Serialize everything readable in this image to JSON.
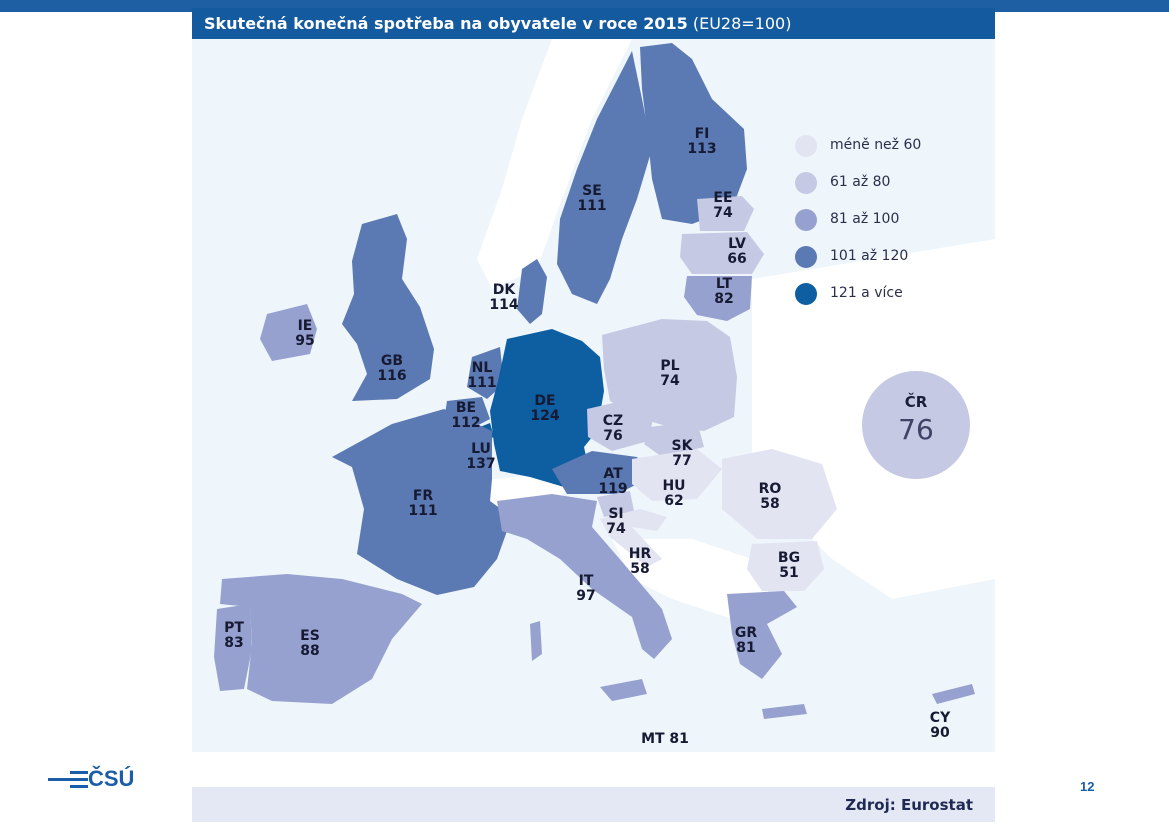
{
  "title": {
    "bold": "Skutečná konečná spotřeba na obyvatele v roce 2015",
    "normal": "(EU28=100)"
  },
  "legend": [
    {
      "label": "méně než 60",
      "color": "#e2e4f2"
    },
    {
      "label": "61  až 80",
      "color": "#c5c9e3"
    },
    {
      "label": "81 až 100",
      "color": "#96a1cf"
    },
    {
      "label": "101 až 120",
      "color": "#5b79b3"
    },
    {
      "label": "121 a více",
      "color": "#0d5fa1"
    }
  ],
  "countries": [
    {
      "code": "FI",
      "value": "113"
    },
    {
      "code": "SE",
      "value": "111"
    },
    {
      "code": "EE",
      "value": "74"
    },
    {
      "code": "LV",
      "value": "66"
    },
    {
      "code": "LT",
      "value": "82"
    },
    {
      "code": "DK",
      "value": "114"
    },
    {
      "code": "IE",
      "value": "95"
    },
    {
      "code": "GB",
      "value": "116"
    },
    {
      "code": "NL",
      "value": "111"
    },
    {
      "code": "BE",
      "value": "112"
    },
    {
      "code": "LU",
      "value": "137"
    },
    {
      "code": "DE",
      "value": "124"
    },
    {
      "code": "PL",
      "value": "74"
    },
    {
      "code": "CZ",
      "value": "76"
    },
    {
      "code": "SK",
      "value": "77"
    },
    {
      "code": "AT",
      "value": "119"
    },
    {
      "code": "HU",
      "value": "62"
    },
    {
      "code": "SI",
      "value": "74"
    },
    {
      "code": "HR",
      "value": "58"
    },
    {
      "code": "RO",
      "value": "58"
    },
    {
      "code": "BG",
      "value": "51"
    },
    {
      "code": "FR",
      "value": "111"
    },
    {
      "code": "IT",
      "value": "97"
    },
    {
      "code": "PT",
      "value": "83"
    },
    {
      "code": "ES",
      "value": "88"
    },
    {
      "code": "GR",
      "value": "81"
    },
    {
      "code": "CY",
      "value": "90"
    }
  ],
  "malta": "MT 81",
  "highlight": {
    "code": "ČR",
    "value": "76"
  },
  "logo_text": "ČSÚ",
  "page_number": "12",
  "source": "Zdroj: Eurostat",
  "colors": {
    "header_blue": "#145a9e",
    "sea": "#eef5fb",
    "non_eu_land": "#ffffff",
    "accent": "#1b5da8"
  }
}
